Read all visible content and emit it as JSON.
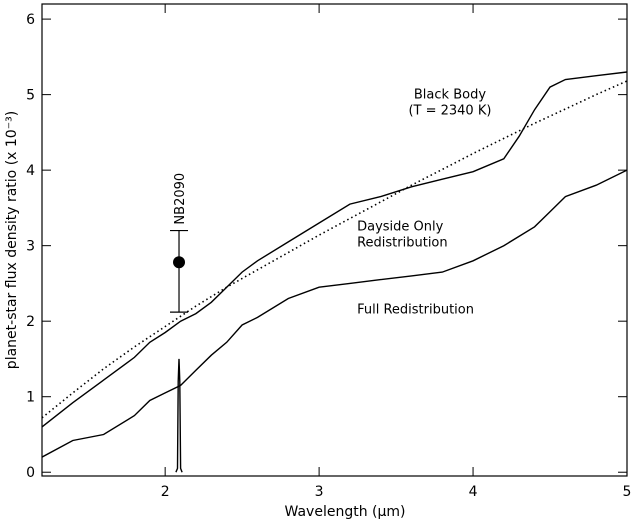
{
  "chart_data": {
    "type": "line",
    "xlabel": "Wavelength (μm)",
    "ylabel": "planet-star flux density ratio (x 10⁻³)",
    "xlim": [
      1.2,
      5.0
    ],
    "ylim": [
      -0.05,
      6.2
    ],
    "x_ticks": [
      {
        "value": 2,
        "label": "2"
      },
      {
        "value": 3,
        "label": "3"
      },
      {
        "value": 4,
        "label": "4"
      },
      {
        "value": 5,
        "label": "5"
      }
    ],
    "y_ticks": [
      {
        "value": 0,
        "label": "0"
      },
      {
        "value": 1,
        "label": "1"
      },
      {
        "value": 2,
        "label": "2"
      },
      {
        "value": 3,
        "label": "3"
      },
      {
        "value": 4,
        "label": "4"
      },
      {
        "value": 5,
        "label": "5"
      },
      {
        "value": 6,
        "label": "6"
      }
    ],
    "grid": false,
    "series": [
      {
        "name": "Black Body (T = 2340 K)",
        "style": "dotted",
        "x": [
          1.2,
          1.4,
          1.6,
          1.8,
          2.0,
          2.2,
          2.4,
          2.6,
          2.8,
          3.0,
          3.2,
          3.4,
          3.6,
          3.8,
          4.0,
          4.2,
          4.4,
          4.6,
          4.8,
          5.0
        ],
        "y": [
          0.72,
          1.05,
          1.37,
          1.66,
          1.93,
          2.2,
          2.45,
          2.68,
          2.91,
          3.14,
          3.36,
          3.58,
          3.8,
          4.01,
          4.22,
          4.42,
          4.62,
          4.81,
          5.0,
          5.18
        ]
      },
      {
        "name": "Dayside Only Redistribution",
        "style": "solid",
        "x": [
          1.2,
          1.4,
          1.6,
          1.8,
          1.9,
          2.0,
          2.1,
          2.2,
          2.3,
          2.4,
          2.5,
          2.6,
          2.8,
          3.0,
          3.2,
          3.4,
          3.6,
          3.8,
          4.0,
          4.2,
          4.3,
          4.4,
          4.5,
          4.6,
          4.8,
          5.0
        ],
        "y": [
          0.6,
          0.92,
          1.22,
          1.52,
          1.72,
          1.85,
          2.0,
          2.1,
          2.25,
          2.45,
          2.65,
          2.8,
          3.05,
          3.3,
          3.55,
          3.65,
          3.78,
          3.88,
          3.98,
          4.15,
          4.45,
          4.8,
          5.1,
          5.2,
          5.25,
          5.3
        ]
      },
      {
        "name": "Full Redistribution",
        "style": "solid",
        "x": [
          1.2,
          1.4,
          1.6,
          1.8,
          1.9,
          2.0,
          2.1,
          2.2,
          2.3,
          2.4,
          2.5,
          2.6,
          2.8,
          3.0,
          3.2,
          3.4,
          3.6,
          3.8,
          4.0,
          4.2,
          4.4,
          4.5,
          4.6,
          4.8,
          5.0
        ],
        "y": [
          0.2,
          0.42,
          0.5,
          0.75,
          0.95,
          1.05,
          1.15,
          1.35,
          1.55,
          1.72,
          1.95,
          2.05,
          2.3,
          2.45,
          2.5,
          2.55,
          2.6,
          2.65,
          2.8,
          3.0,
          3.25,
          3.45,
          3.65,
          3.8,
          4.0
        ]
      },
      {
        "name": "NB2090 filter",
        "style": "solid",
        "x": [
          2.07,
          2.08,
          2.085,
          2.09,
          2.095,
          2.1,
          2.11
        ],
        "y": [
          0.0,
          0.05,
          1.2,
          1.5,
          1.2,
          0.05,
          0.0
        ]
      }
    ],
    "measurement": {
      "label": "NB2090",
      "x": 2.09,
      "y": 2.78,
      "yerr_low": 2.12,
      "yerr_high": 3.2
    },
    "annotations": [
      {
        "lines": [
          "Black Body",
          "(T = 2340 K)"
        ],
        "x": 3.85,
        "y": 4.95
      },
      {
        "lines": [
          "Dayside Only",
          "Redistribution"
        ],
        "x": 3.0,
        "y": 3.2
      },
      {
        "lines": [
          "Full Redistribution"
        ],
        "x": 3.0,
        "y": 2.1
      }
    ]
  }
}
